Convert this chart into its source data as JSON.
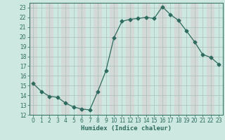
{
  "xlabel": "Humidex (Indice chaleur)",
  "ylabel": "",
  "x": [
    0,
    1,
    2,
    3,
    4,
    5,
    6,
    7,
    8,
    9,
    10,
    11,
    12,
    13,
    14,
    15,
    16,
    17,
    18,
    19,
    20,
    21,
    22,
    23
  ],
  "y": [
    15.2,
    14.4,
    13.9,
    13.8,
    13.2,
    12.8,
    12.6,
    12.5,
    14.4,
    16.5,
    19.9,
    21.6,
    21.8,
    21.9,
    22.0,
    21.9,
    23.1,
    22.3,
    21.7,
    20.6,
    19.5,
    18.2,
    17.9,
    17.2
  ],
  "xlim": [
    -0.5,
    23.5
  ],
  "ylim": [
    12,
    23.5
  ],
  "yticks": [
    12,
    13,
    14,
    15,
    16,
    17,
    18,
    19,
    20,
    21,
    22,
    23
  ],
  "xticks": [
    0,
    1,
    2,
    3,
    4,
    5,
    6,
    7,
    8,
    9,
    10,
    11,
    12,
    13,
    14,
    15,
    16,
    17,
    18,
    19,
    20,
    21,
    22,
    23
  ],
  "line_color": "#2e6b5e",
  "marker": "D",
  "marker_size": 2.5,
  "bg_color": "#cce8e0",
  "col_band_color": "#ddc8cc",
  "grid_line_color": "#aabfbb",
  "tick_fontsize": 5.5,
  "xlabel_fontsize": 6.5
}
